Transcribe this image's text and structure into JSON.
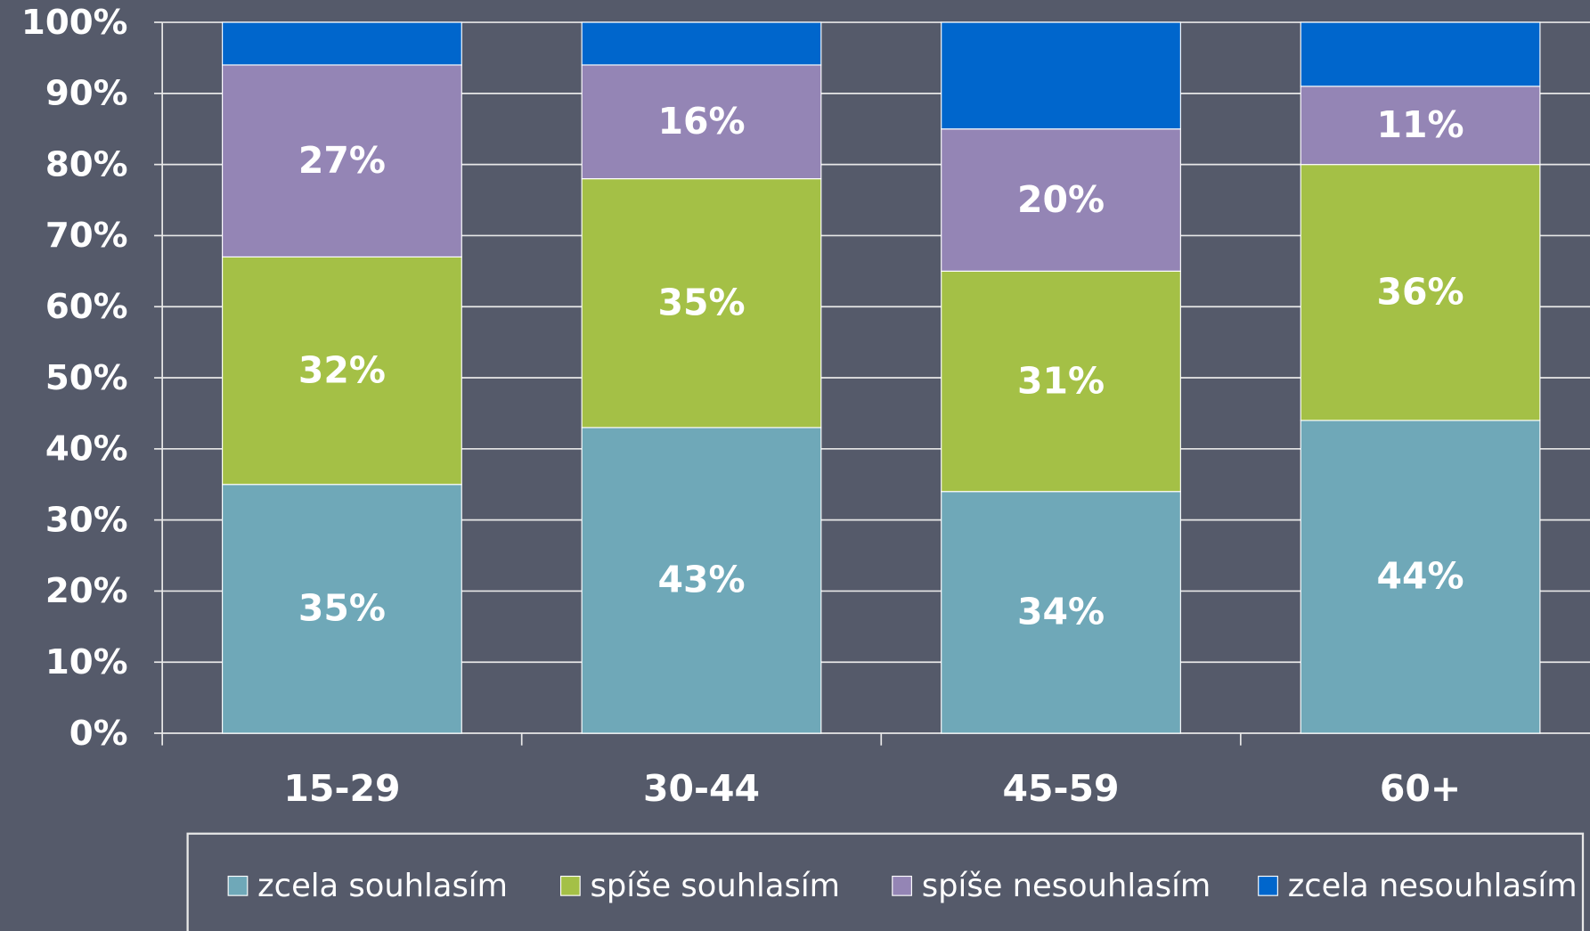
{
  "chart_data": {
    "type": "stacked-bar",
    "categories": [
      "15-29",
      "30-44",
      "45-59",
      "60+"
    ],
    "series": [
      {
        "name": "zcela souhlasím",
        "color": "#6fa8b8",
        "values": [
          35,
          43,
          34,
          44
        ],
        "value_labels": [
          "35%",
          "43%",
          "34%",
          "44%"
        ]
      },
      {
        "name": "spíše souhlasím",
        "color": "#a4c046",
        "values": [
          32,
          35,
          31,
          36
        ],
        "value_labels": [
          "32%",
          "35%",
          "31%",
          "36%"
        ]
      },
      {
        "name": "spíše nesouhlasím",
        "color": "#9485b5",
        "values": [
          27,
          16,
          20,
          11
        ],
        "value_labels": [
          "27%",
          "16%",
          "20%",
          "11%"
        ]
      },
      {
        "name": "zcela nesouhlasím",
        "color": "#0066cc",
        "values": [
          6,
          6,
          15,
          9
        ]
      }
    ],
    "ylim": [
      0,
      100
    ],
    "yticks": [
      {
        "value": 0,
        "label": "0%"
      },
      {
        "value": 10,
        "label": "10%"
      },
      {
        "value": 20,
        "label": "20%"
      },
      {
        "value": 30,
        "label": "30%"
      },
      {
        "value": 40,
        "label": "40%"
      },
      {
        "value": 50,
        "label": "50%"
      },
      {
        "value": 60,
        "label": "60%"
      },
      {
        "value": 70,
        "label": "70%"
      },
      {
        "value": 80,
        "label": "80%"
      },
      {
        "value": 90,
        "label": "90%"
      },
      {
        "value": 100,
        "label": "100%"
      }
    ],
    "grid": true,
    "legend": "bottom"
  }
}
